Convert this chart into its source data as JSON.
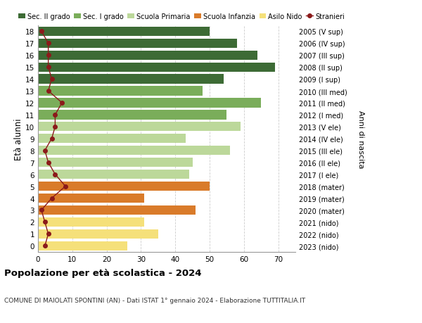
{
  "ages": [
    18,
    17,
    16,
    15,
    14,
    13,
    12,
    11,
    10,
    9,
    8,
    7,
    6,
    5,
    4,
    3,
    2,
    1,
    0
  ],
  "bar_values": [
    50,
    58,
    64,
    69,
    54,
    48,
    65,
    55,
    59,
    43,
    56,
    45,
    44,
    50,
    31,
    46,
    31,
    35,
    26
  ],
  "stranieri": [
    1,
    3,
    3,
    3,
    4,
    3,
    7,
    5,
    5,
    4,
    2,
    3,
    5,
    8,
    4,
    1,
    2,
    3,
    2
  ],
  "right_labels": [
    "2005 (V sup)",
    "2006 (IV sup)",
    "2007 (III sup)",
    "2008 (II sup)",
    "2009 (I sup)",
    "2010 (III med)",
    "2011 (II med)",
    "2012 (I med)",
    "2013 (V ele)",
    "2014 (IV ele)",
    "2015 (III ele)",
    "2016 (II ele)",
    "2017 (I ele)",
    "2018 (mater)",
    "2019 (mater)",
    "2020 (mater)",
    "2021 (nido)",
    "2022 (nido)",
    "2023 (nido)"
  ],
  "bar_colors": [
    "#3d6b35",
    "#3d6b35",
    "#3d6b35",
    "#3d6b35",
    "#3d6b35",
    "#7aad5a",
    "#7aad5a",
    "#7aad5a",
    "#bcd89a",
    "#bcd89a",
    "#bcd89a",
    "#bcd89a",
    "#bcd89a",
    "#d97b2a",
    "#d97b2a",
    "#d97b2a",
    "#f5e07a",
    "#f5e07a",
    "#f5e07a"
  ],
  "legend_labels": [
    "Sec. II grado",
    "Sec. I grado",
    "Scuola Primaria",
    "Scuola Infanzia",
    "Asilo Nido",
    "Stranieri"
  ],
  "legend_colors": [
    "#3d6b35",
    "#7aad5a",
    "#bcd89a",
    "#d97b2a",
    "#f5e07a",
    "#8b1a1a"
  ],
  "stranieri_color": "#8b1a1a",
  "title": "Popolazione per età scolastica - 2024",
  "subtitle": "COMUNE DI MAIOLATI SPONTINI (AN) - Dati ISTAT 1° gennaio 2024 - Elaborazione TUTTITALIA.IT",
  "ylabel": "Età alunni",
  "right_ylabel": "Anni di nascita",
  "xlim": [
    0,
    75
  ],
  "xticks": [
    0,
    10,
    20,
    30,
    40,
    50,
    60,
    70
  ],
  "bg_color": "#ffffff",
  "grid_color": "#cccccc"
}
